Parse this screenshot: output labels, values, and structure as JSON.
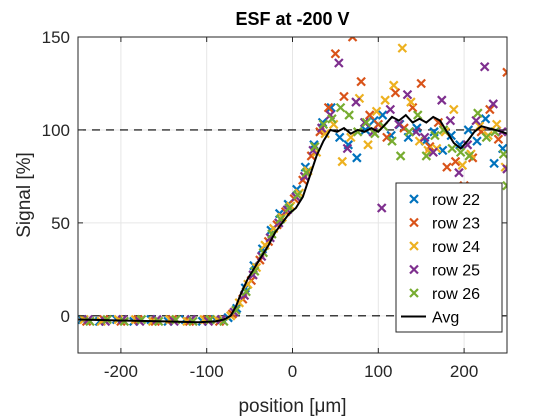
{
  "chart_data": {
    "type": "scatter",
    "title": "ESF at -200 V",
    "xlabel": "position [μm]",
    "ylabel": "Signal [%]",
    "xlim": [
      -250,
      250
    ],
    "ylim": [
      -20,
      150
    ],
    "xticks": [
      -200,
      -100,
      0,
      100,
      200
    ],
    "yticks": [
      0,
      50,
      100,
      150
    ],
    "grid": true,
    "reference_lines": [
      0,
      100
    ],
    "legend_position": "bottom-right",
    "series": [
      {
        "name": "row 22",
        "color": "#0072BD",
        "marker": "x",
        "points": [
          [
            -245,
            -2
          ],
          [
            -225,
            -3
          ],
          [
            -205,
            -2
          ],
          [
            -185,
            -3
          ],
          [
            -165,
            -2
          ],
          [
            -145,
            -3
          ],
          [
            -125,
            -2
          ],
          [
            -105,
            -3
          ],
          [
            -90,
            -2
          ],
          [
            -75,
            -1
          ],
          [
            -65,
            4
          ],
          [
            -55,
            15
          ],
          [
            -45,
            27
          ],
          [
            -35,
            36
          ],
          [
            -25,
            46
          ],
          [
            -15,
            55
          ],
          [
            -5,
            60
          ],
          [
            5,
            68
          ],
          [
            15,
            80
          ],
          [
            25,
            92
          ],
          [
            35,
            104
          ],
          [
            45,
            112
          ],
          [
            55,
            96
          ],
          [
            65,
            92
          ],
          [
            75,
            85
          ],
          [
            85,
            100
          ],
          [
            95,
            105
          ],
          [
            105,
            108
          ],
          [
            115,
            97
          ],
          [
            125,
            103
          ],
          [
            135,
            96
          ],
          [
            145,
            101
          ],
          [
            155,
            94
          ],
          [
            165,
            99
          ],
          [
            175,
            89
          ],
          [
            185,
            97
          ],
          [
            195,
            92
          ],
          [
            205,
            100
          ],
          [
            215,
            94
          ],
          [
            225,
            106
          ],
          [
            235,
            82
          ],
          [
            245,
            90
          ]
        ]
      },
      {
        "name": "row 23",
        "color": "#D95319",
        "marker": "x",
        "points": [
          [
            -240,
            -3
          ],
          [
            -220,
            -2
          ],
          [
            -200,
            -3
          ],
          [
            -180,
            -2
          ],
          [
            -160,
            -3
          ],
          [
            -140,
            -2
          ],
          [
            -120,
            -3
          ],
          [
            -100,
            -2
          ],
          [
            -85,
            -3
          ],
          [
            -70,
            1
          ],
          [
            -58,
            9
          ],
          [
            -48,
            19
          ],
          [
            -38,
            30
          ],
          [
            -28,
            40
          ],
          [
            -18,
            49
          ],
          [
            -8,
            56
          ],
          [
            2,
            63
          ],
          [
            12,
            73
          ],
          [
            22,
            86
          ],
          [
            32,
            99
          ],
          [
            42,
            112
          ],
          [
            50,
            141
          ],
          [
            60,
            118
          ],
          [
            70,
            150
          ],
          [
            80,
            126
          ],
          [
            90,
            108
          ],
          [
            100,
            103
          ],
          [
            110,
            96
          ],
          [
            120,
            120
          ],
          [
            130,
            101
          ],
          [
            140,
            112
          ],
          [
            150,
            125
          ],
          [
            160,
            91
          ],
          [
            170,
            104
          ],
          [
            180,
            80
          ],
          [
            190,
            83
          ],
          [
            200,
            70
          ],
          [
            210,
            85
          ],
          [
            220,
            99
          ],
          [
            230,
            111
          ],
          [
            240,
            95
          ],
          [
            250,
            131
          ]
        ]
      },
      {
        "name": "row 24",
        "color": "#EDB120",
        "marker": "x",
        "points": [
          [
            -243,
            -2
          ],
          [
            -223,
            -3
          ],
          [
            -203,
            -2
          ],
          [
            -183,
            -2
          ],
          [
            -163,
            -3
          ],
          [
            -143,
            -2
          ],
          [
            -123,
            -3
          ],
          [
            -103,
            -2
          ],
          [
            -88,
            -2
          ],
          [
            -72,
            0
          ],
          [
            -62,
            7
          ],
          [
            -52,
            17
          ],
          [
            -42,
            26
          ],
          [
            -32,
            38
          ],
          [
            -22,
            47
          ],
          [
            -12,
            53
          ],
          [
            -2,
            59
          ],
          [
            8,
            66
          ],
          [
            18,
            78
          ],
          [
            28,
            88
          ],
          [
            38,
            98
          ],
          [
            48,
            103
          ],
          [
            58,
            83
          ],
          [
            68,
            96
          ],
          [
            78,
            117
          ],
          [
            88,
            92
          ],
          [
            98,
            110
          ],
          [
            108,
            116
          ],
          [
            118,
            124
          ],
          [
            128,
            144
          ],
          [
            138,
            115
          ],
          [
            148,
            94
          ],
          [
            158,
            89
          ],
          [
            168,
            90
          ],
          [
            178,
            99
          ],
          [
            188,
            111
          ],
          [
            198,
            81
          ],
          [
            208,
            87
          ],
          [
            218,
            102
          ],
          [
            228,
            97
          ],
          [
            238,
            103
          ],
          [
            248,
            80
          ]
        ]
      },
      {
        "name": "row 25",
        "color": "#7E2F8E",
        "marker": "x",
        "points": [
          [
            -238,
            -2
          ],
          [
            -218,
            -3
          ],
          [
            -198,
            -2
          ],
          [
            -178,
            -3
          ],
          [
            -158,
            -2
          ],
          [
            -138,
            -3
          ],
          [
            -118,
            -2
          ],
          [
            -98,
            -3
          ],
          [
            -83,
            -2
          ],
          [
            -68,
            2
          ],
          [
            -56,
            11
          ],
          [
            -46,
            22
          ],
          [
            -36,
            32
          ],
          [
            -26,
            42
          ],
          [
            -16,
            50
          ],
          [
            -6,
            57
          ],
          [
            4,
            64
          ],
          [
            14,
            75
          ],
          [
            24,
            89
          ],
          [
            34,
            101
          ],
          [
            44,
            108
          ],
          [
            54,
            136
          ],
          [
            64,
            90
          ],
          [
            74,
            115
          ],
          [
            84,
            104
          ],
          [
            94,
            99
          ],
          [
            104,
            58
          ],
          [
            114,
            111
          ],
          [
            124,
            103
          ],
          [
            134,
            119
          ],
          [
            144,
            99
          ],
          [
            154,
            96
          ],
          [
            164,
            88
          ],
          [
            174,
            116
          ],
          [
            184,
            105
          ],
          [
            194,
            77
          ],
          [
            204,
            92
          ],
          [
            214,
            105
          ],
          [
            224,
            134
          ],
          [
            234,
            114
          ],
          [
            244,
            99
          ],
          [
            250,
            79
          ]
        ]
      },
      {
        "name": "row 26",
        "color": "#77AC30",
        "marker": "x",
        "points": [
          [
            -236,
            -3
          ],
          [
            -216,
            -2
          ],
          [
            -196,
            -3
          ],
          [
            -176,
            -2
          ],
          [
            -156,
            -3
          ],
          [
            -136,
            -2
          ],
          [
            -116,
            -3
          ],
          [
            -96,
            -2
          ],
          [
            -80,
            -3
          ],
          [
            -66,
            3
          ],
          [
            -54,
            13
          ],
          [
            -44,
            24
          ],
          [
            -34,
            34
          ],
          [
            -24,
            44
          ],
          [
            -14,
            52
          ],
          [
            -4,
            58
          ],
          [
            6,
            65
          ],
          [
            16,
            77
          ],
          [
            26,
            91
          ],
          [
            36,
            103
          ],
          [
            46,
            106
          ],
          [
            56,
            112
          ],
          [
            66,
            108
          ],
          [
            76,
            99
          ],
          [
            86,
            104
          ],
          [
            96,
            98
          ],
          [
            106,
            102
          ],
          [
            116,
            94
          ],
          [
            126,
            86
          ],
          [
            136,
            99
          ],
          [
            146,
            108
          ],
          [
            156,
            86
          ],
          [
            166,
            97
          ],
          [
            176,
            100
          ],
          [
            186,
            90
          ],
          [
            196,
            88
          ],
          [
            206,
            86
          ],
          [
            216,
            109
          ],
          [
            226,
            96
          ],
          [
            236,
            99
          ],
          [
            246,
            87
          ],
          [
            250,
            70
          ]
        ]
      },
      {
        "name": "Avg",
        "color": "#000000",
        "marker": "line",
        "points": [
          [
            -250,
            -2
          ],
          [
            -200,
            -2.5
          ],
          [
            -150,
            -3
          ],
          [
            -110,
            -3.5
          ],
          [
            -90,
            -3
          ],
          [
            -80,
            -2
          ],
          [
            -72,
            0
          ],
          [
            -66,
            5
          ],
          [
            -60,
            12
          ],
          [
            -52,
            20
          ],
          [
            -44,
            26
          ],
          [
            -36,
            32
          ],
          [
            -28,
            38
          ],
          [
            -20,
            45
          ],
          [
            -12,
            50
          ],
          [
            -4,
            55
          ],
          [
            4,
            58
          ],
          [
            12,
            64
          ],
          [
            20,
            75
          ],
          [
            28,
            86
          ],
          [
            36,
            94
          ],
          [
            44,
            100
          ],
          [
            52,
            99
          ],
          [
            60,
            101
          ],
          [
            68,
            98
          ],
          [
            76,
            100
          ],
          [
            84,
            99
          ],
          [
            92,
            101
          ],
          [
            100,
            99
          ],
          [
            108,
            103
          ],
          [
            116,
            107
          ],
          [
            124,
            105
          ],
          [
            132,
            108
          ],
          [
            140,
            104
          ],
          [
            148,
            106
          ],
          [
            156,
            104
          ],
          [
            164,
            107
          ],
          [
            172,
            105
          ],
          [
            180,
            99
          ],
          [
            188,
            93
          ],
          [
            196,
            90
          ],
          [
            204,
            94
          ],
          [
            212,
            99
          ],
          [
            220,
            102
          ],
          [
            228,
            101
          ],
          [
            236,
            100
          ],
          [
            244,
            99
          ],
          [
            250,
            98
          ]
        ]
      }
    ]
  }
}
